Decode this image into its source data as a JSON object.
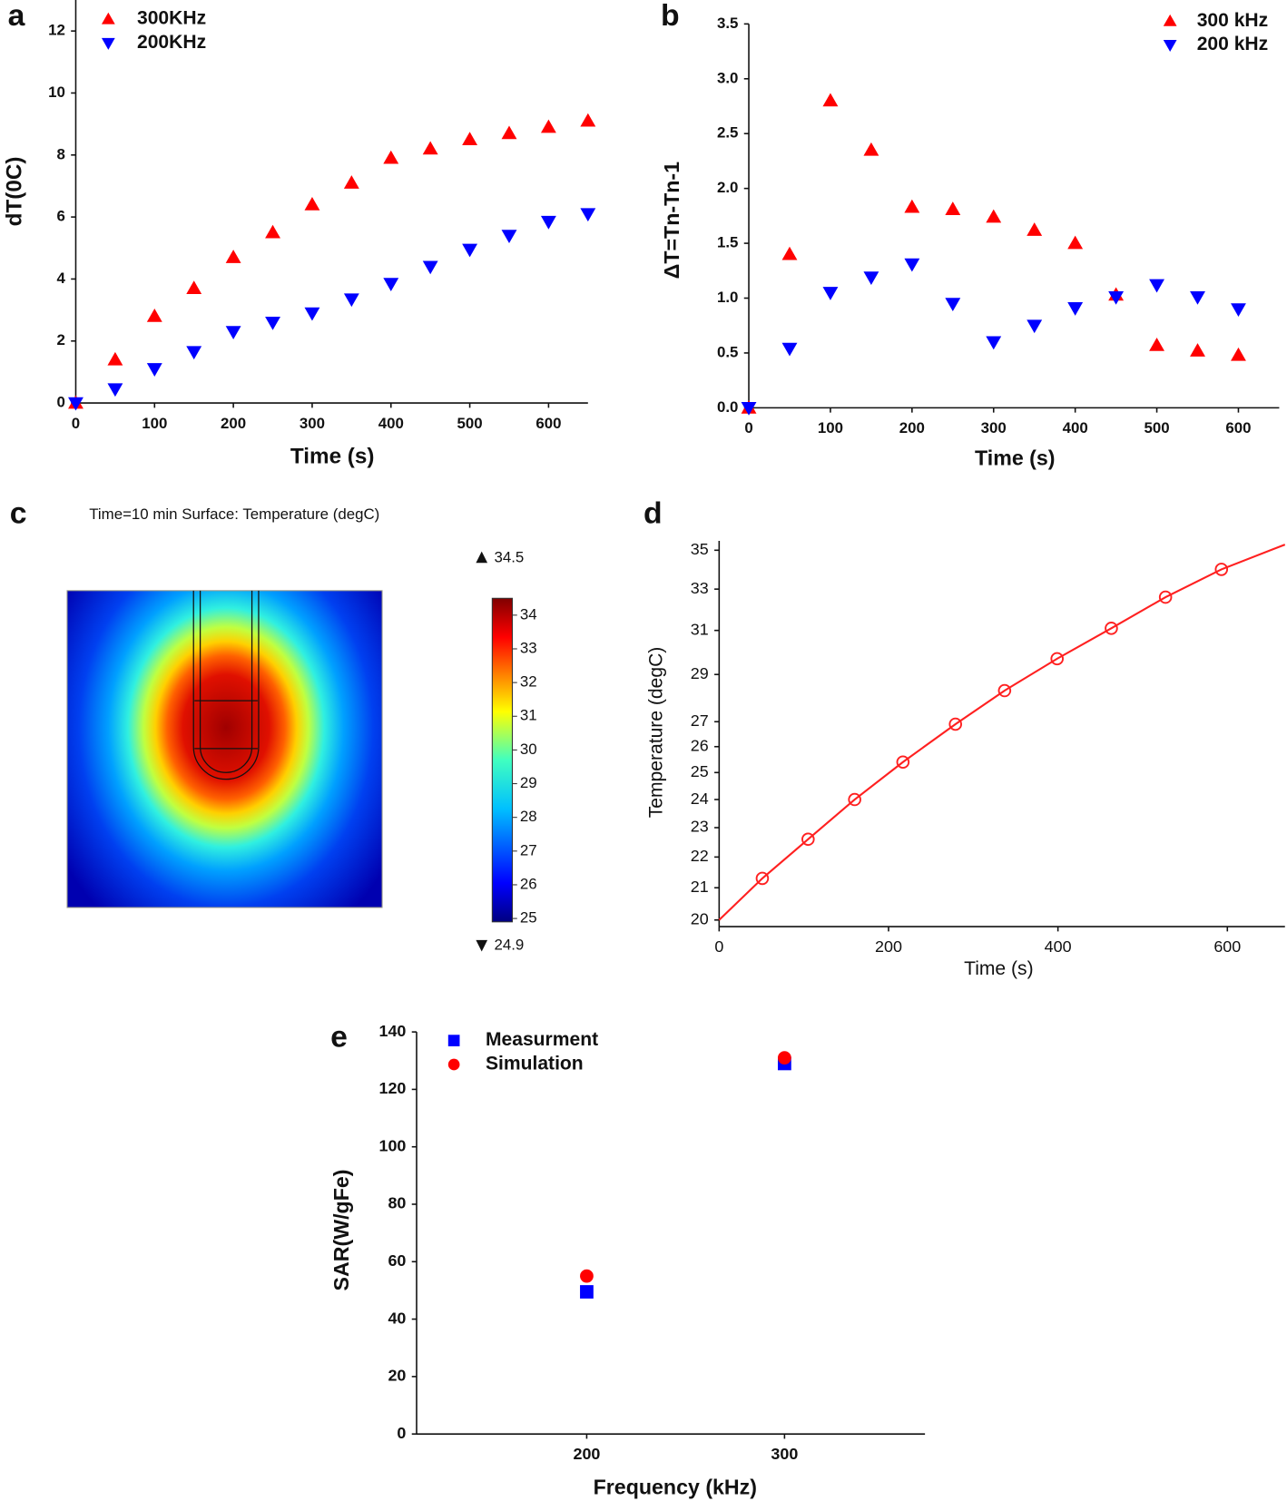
{
  "chart_data": [
    {
      "type": "scatter",
      "label": "a",
      "xlabel": "Time (s)",
      "ylabel": "dT(0C)",
      "legend": "upper left",
      "x": [
        0,
        50,
        100,
        150,
        200,
        250,
        300,
        350,
        400,
        450,
        500,
        550,
        600,
        650
      ],
      "series": [
        {
          "name": "300KHz",
          "color": "#ff0000",
          "marker": "triangle-up",
          "values": [
            0,
            1.4,
            2.8,
            3.7,
            4.7,
            5.5,
            6.4,
            7.1,
            7.9,
            8.2,
            8.5,
            8.7,
            8.9,
            9.1
          ]
        },
        {
          "name": "200KHz",
          "color": "#0000ff",
          "marker": "triangle-down",
          "values": [
            0,
            0.45,
            1.1,
            1.65,
            2.3,
            2.6,
            2.9,
            3.35,
            3.85,
            4.4,
            4.95,
            5.4,
            5.85,
            6.1
          ]
        }
      ],
      "xlim": [
        0,
        650
      ],
      "ylim": [
        0,
        13
      ],
      "xticks": [
        0,
        100,
        200,
        300,
        400,
        500,
        600
      ],
      "yticks": [
        0,
        2,
        4,
        6,
        8,
        10,
        12
      ]
    },
    {
      "type": "scatter",
      "label": "b",
      "xlabel": "Time (s)",
      "ylabel": "ΔT=Tn-Tn-1",
      "legend": "upper right",
      "x": [
        0,
        50,
        100,
        150,
        200,
        250,
        300,
        350,
        400,
        450,
        500,
        550,
        600
      ],
      "series": [
        {
          "name": "300 kHz",
          "color": "#ff0000",
          "marker": "triangle-up",
          "values": [
            0,
            1.4,
            2.8,
            2.35,
            1.83,
            1.81,
            1.74,
            1.62,
            1.5,
            1.03,
            0.57,
            0.52,
            0.48
          ]
        },
        {
          "name": "200 kHz",
          "color": "#0000ff",
          "marker": "triangle-down",
          "values": [
            0,
            0.54,
            1.05,
            1.19,
            1.31,
            0.95,
            0.6,
            0.75,
            0.91,
            1.01,
            1.12,
            1.01,
            0.9
          ]
        }
      ],
      "xlim": [
        0,
        650
      ],
      "ylim": [
        0,
        3.5
      ],
      "xticks": [
        0,
        100,
        200,
        300,
        400,
        500,
        600
      ],
      "yticks": [
        {
          "value": 0,
          "label": "0.0"
        },
        0.5,
        {
          "value": 1,
          "label": "1.0"
        },
        1.5,
        {
          "value": 2,
          "label": "2.0"
        },
        2.5,
        {
          "value": 3,
          "label": "3.0"
        },
        3.5
      ]
    },
    {
      "type": "heatmap",
      "label": "c",
      "title": "Time=10 min   Surface: Temperature (degC)",
      "colorbar_ticks": [
        25,
        26,
        27,
        28,
        29,
        30,
        31,
        32,
        33,
        34
      ],
      "max": 34.5,
      "min": 24.9
    },
    {
      "type": "line",
      "label": "d",
      "xlabel": "Time (s)",
      "ylabel": "Temperature (degC)",
      "yscale": "log",
      "series": [
        {
          "style": "line",
          "color": "#ff2020",
          "x": [
            0,
            51,
            105,
            160,
            217,
            279,
            337,
            399,
            463,
            527,
            593,
            668
          ],
          "values": [
            20,
            21.3,
            22.6,
            24.0,
            25.4,
            26.9,
            28.3,
            29.7,
            31.1,
            32.6,
            34.0,
            35.3
          ]
        },
        {
          "style": "marker",
          "color": "#ff2020",
          "x": [
            51,
            105,
            160,
            217,
            279,
            337,
            399,
            463,
            527,
            593
          ],
          "values": [
            21.3,
            22.6,
            24.0,
            25.4,
            26.9,
            28.3,
            29.7,
            31.1,
            32.6,
            34.0
          ]
        }
      ],
      "xlim": [
        0,
        668
      ],
      "ylim": [
        19.8,
        35.5
      ],
      "xticks": [
        0,
        200,
        400,
        600
      ],
      "yticks": [
        20,
        21,
        22,
        23,
        24,
        25,
        26,
        27,
        29,
        31,
        33,
        35
      ]
    },
    {
      "type": "scatter",
      "label": "e",
      "xlabel": "Frequency (kHz)",
      "ylabel": "SAR(W/gFe)",
      "legend": "upper left",
      "x": [
        200,
        300
      ],
      "series": [
        {
          "name": "Measurment",
          "color": "#0000ff",
          "marker": "square",
          "values": [
            49.5,
            129
          ]
        },
        {
          "name": "Simulation",
          "color": "#ff0000",
          "marker": "circle",
          "values": [
            55,
            131
          ]
        }
      ],
      "xlim": [
        114,
        371
      ],
      "ylim": [
        0,
        140
      ],
      "xticks": [
        200,
        300
      ],
      "yticks": [
        0,
        20,
        40,
        60,
        80,
        100,
        120,
        140
      ]
    }
  ]
}
